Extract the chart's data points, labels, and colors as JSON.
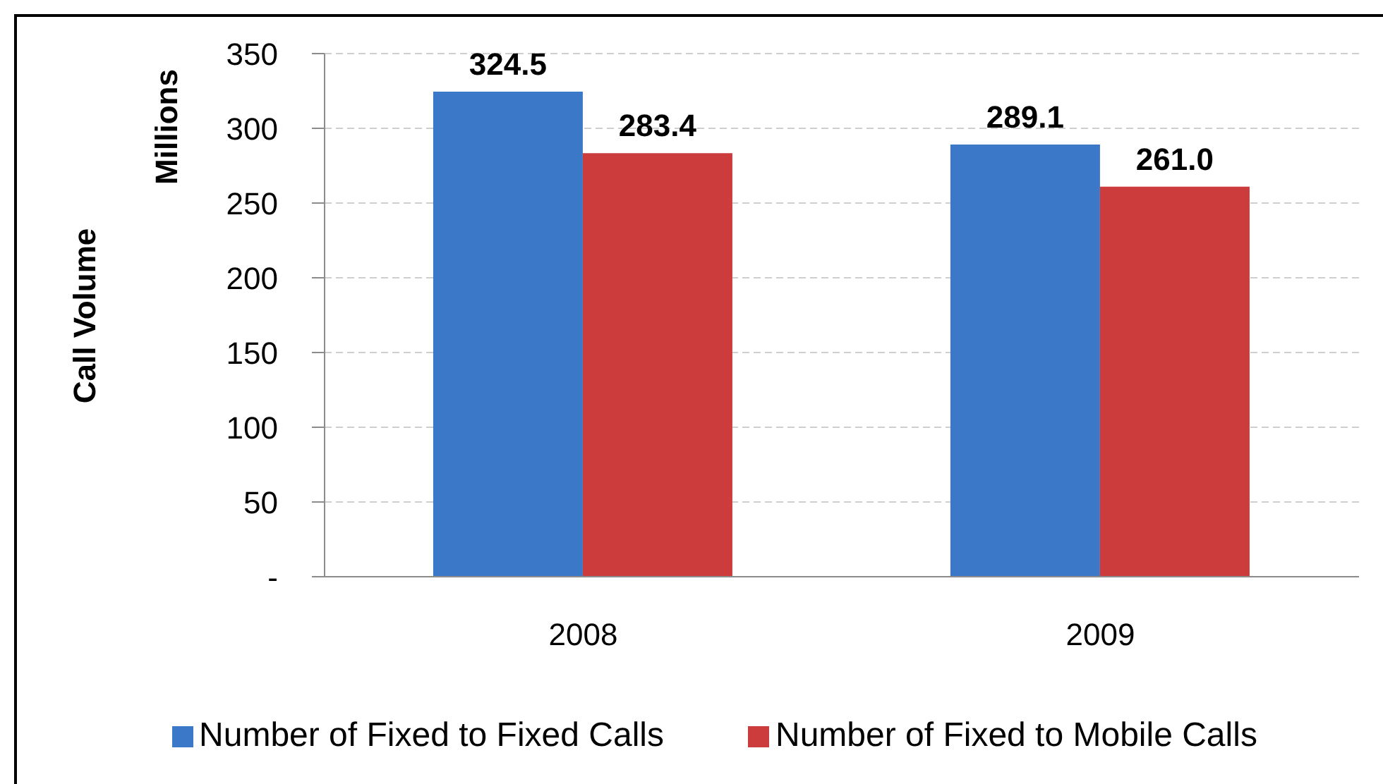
{
  "chart_data": {
    "type": "bar",
    "categories": [
      "2008",
      "2009"
    ],
    "series": [
      {
        "name": "Number of Fixed to Fixed Calls",
        "color": "#3c78c8",
        "values": [
          324.5,
          289.1
        ],
        "value_labels": [
          "324.5",
          "289.1"
        ]
      },
      {
        "name": "Number of Fixed to Mobile Calls",
        "color": "#cc3c3c",
        "values": [
          283.4,
          261.0
        ],
        "value_labels": [
          "283.4",
          "261.0"
        ]
      }
    ],
    "ylabel": "Call Volume",
    "annotations": [
      "Millions"
    ],
    "ylim": [
      0,
      350
    ],
    "yticks": [
      {
        "value": 0,
        "label": "-"
      },
      50,
      100,
      150,
      200,
      250,
      300,
      350
    ],
    "grid": "y",
    "legend": "bottom"
  }
}
